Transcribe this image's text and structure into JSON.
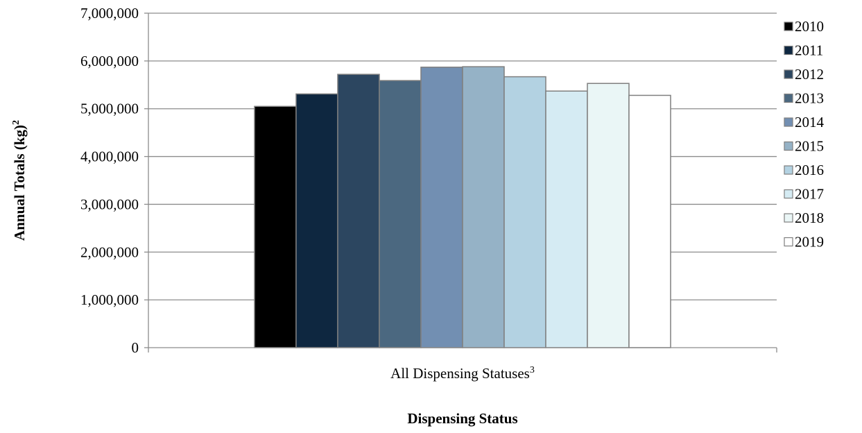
{
  "chart_data": {
    "type": "bar",
    "categories": [
      "All Dispensing Statuses"
    ],
    "category_superscript": "3",
    "series": [
      {
        "name": "2010",
        "values": [
          5050000
        ],
        "color": "#000000"
      },
      {
        "name": "2011",
        "values": [
          5310000
        ],
        "color": "#0e2740"
      },
      {
        "name": "2012",
        "values": [
          5720000
        ],
        "color": "#2c4660"
      },
      {
        "name": "2013",
        "values": [
          5590000
        ],
        "color": "#4b6880"
      },
      {
        "name": "2014",
        "values": [
          5870000
        ],
        "color": "#728fb2"
      },
      {
        "name": "2015",
        "values": [
          5880000
        ],
        "color": "#95b2c6"
      },
      {
        "name": "2016",
        "values": [
          5670000
        ],
        "color": "#b3d2e2"
      },
      {
        "name": "2017",
        "values": [
          5370000
        ],
        "color": "#d5ebf3"
      },
      {
        "name": "2018",
        "values": [
          5530000
        ],
        "color": "#eaf6f6"
      },
      {
        "name": "2019",
        "values": [
          5280000
        ],
        "color": "#ffffff"
      }
    ],
    "xlabel": "Dispensing Status",
    "ylabel": "Annual Totals (kg)",
    "ylabel_superscript": "2",
    "ylim": [
      0,
      7000000
    ],
    "yticks": [
      0,
      1000000,
      2000000,
      3000000,
      4000000,
      5000000,
      6000000,
      7000000
    ],
    "ytick_labels": [
      "0",
      "1,000,000",
      "2,000,000",
      "3,000,000",
      "4,000,000",
      "5,000,000",
      "6,000,000",
      "7,000,000"
    ],
    "grid": true,
    "legend_position": "right",
    "bar_edge_color": "#7f7f7f",
    "grid_color": "#8c8c8c"
  }
}
